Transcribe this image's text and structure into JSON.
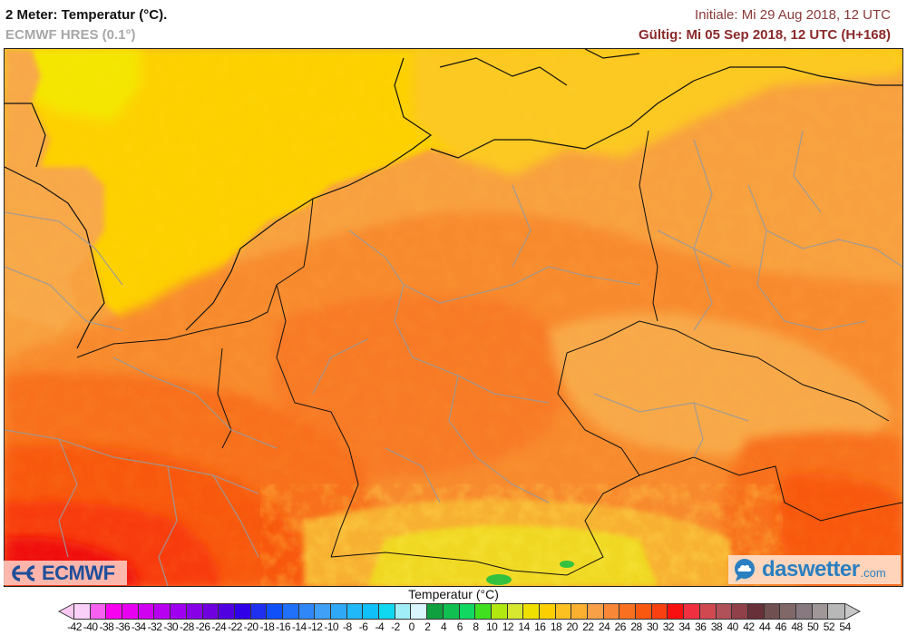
{
  "header": {
    "title": "2 Meter: Temperatur (°C).",
    "subtitle": "ECMWF HRES (0.1°)",
    "init": "Initiale: Mi 29 Aug 2018, 12 UTC",
    "valid": "Gültig: Mi 05 Sep 2018, 12 UTC (H+168)"
  },
  "map": {
    "region": "Central Europe (Germany, Benelux, France, Czechia, Poland, Alps)",
    "colors": {
      "sea_north": "#fdd000",
      "sea_north_bright": "#f4e600",
      "land_18_20": "#fdb735",
      "land_20_22": "#f8a040",
      "land_22_24": "#f88a2e",
      "land_24_26": "#f8701a",
      "land_26_28": "#f85810",
      "land_28_30": "#f83a0a",
      "land_30_32": "#f01010",
      "alps_14_16": "#f0e020",
      "alps_green": "#30c040",
      "coastline": "#111111",
      "borders": "#999999"
    }
  },
  "logos": {
    "ecmwf": "ECMWF",
    "daswetter_main": "daswetter",
    "daswetter_suffix": ".com"
  },
  "legend": {
    "title": "Temperatur (°C)",
    "ticks": [
      "-42",
      "-40",
      "-38",
      "-36",
      "-34",
      "-32",
      "-30",
      "-28",
      "-26",
      "-24",
      "-22",
      "-20",
      "-18",
      "-16",
      "-14",
      "-12",
      "-10",
      "-8",
      "-6",
      "-4",
      "-2",
      "0",
      "2",
      "4",
      "6",
      "8",
      "10",
      "12",
      "14",
      "16",
      "18",
      "20",
      "22",
      "24",
      "26",
      "28",
      "30",
      "32",
      "34",
      "36",
      "38",
      "40",
      "42",
      "44",
      "46",
      "48",
      "50",
      "52",
      "54"
    ],
    "colors": [
      "#fad0f8",
      "#f860f0",
      "#f800f0",
      "#e800f0",
      "#d000f0",
      "#b800f0",
      "#a000f0",
      "#8800e8",
      "#7000e0",
      "#5000e0",
      "#3000e8",
      "#2030f0",
      "#1050f8",
      "#2070f8",
      "#3088f8",
      "#40a0f8",
      "#30a8f8",
      "#20b8f8",
      "#10c0f8",
      "#10d8f0",
      "#a0eef8",
      "#d8f6fc",
      "#10a040",
      "#10c050",
      "#10d860",
      "#40e020",
      "#b0e810",
      "#d8e830",
      "#f0e000",
      "#fcd000",
      "#fcc020",
      "#fcb030",
      "#f8a048",
      "#f88838",
      "#f87020",
      "#f85810",
      "#f84010",
      "#f81010",
      "#f03040",
      "#d04850",
      "#b05058",
      "#904048",
      "#683038",
      "#705050",
      "#806868",
      "#887880",
      "#a09898",
      "#b8b8b8"
    ]
  }
}
